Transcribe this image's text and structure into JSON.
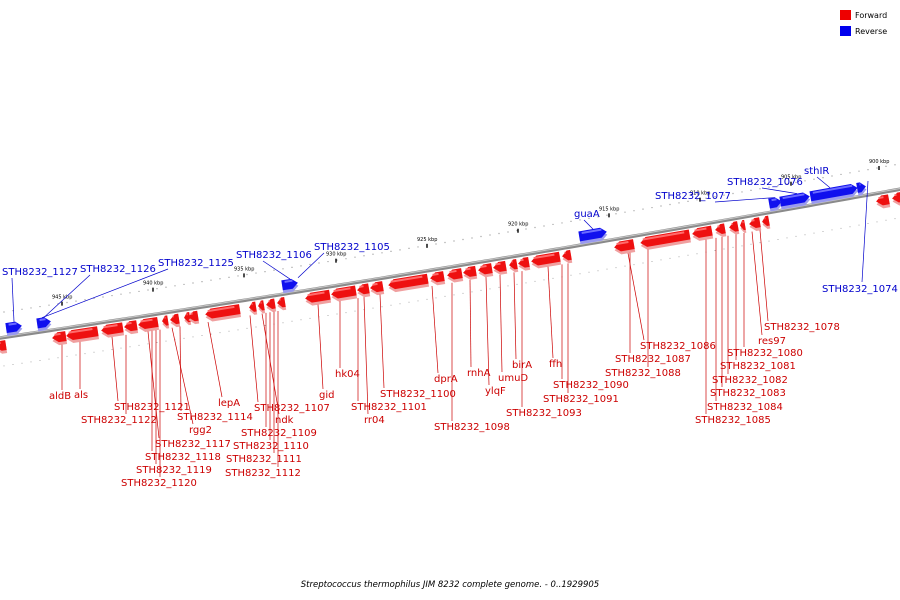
{
  "legend": [
    {
      "label": "Forward",
      "color": "#ee0000"
    },
    {
      "label": "Reverse",
      "color": "#0000ee"
    }
  ],
  "caption": "Streptococcus thermophilus JIM 8232 complete genome. - 0..1929905",
  "ticks": [
    "945 kbp",
    "940 kbp",
    "935 kbp",
    "930 kbp",
    "925 kbp",
    "920 kbp",
    "915 kbp",
    "910 kbp",
    "905 kbp",
    "900 kbp"
  ],
  "reverse_genes": [
    "STH8232_1127",
    "STH8232_1126",
    "STH8232_1125",
    "STH8232_1106",
    "STH8232_1105",
    "guaA",
    "STH8232_1077",
    "STH8232_1076",
    "sthIR",
    "STH8232_1074"
  ],
  "forward_genes": [
    "aldB",
    "als",
    "STH8232_1121",
    "STH8232_1122",
    "STH8232_1117",
    "STH8232_1118",
    "STH8232_1119",
    "STH8232_1120",
    "rgg2",
    "STH8232_1114",
    "lepA",
    "STH8232_1107",
    "ndk",
    "STH8232_1109",
    "STH8232_1110",
    "STH8232_1111",
    "STH8232_1112",
    "gid",
    "hk04",
    "STH8232_1101",
    "rr04",
    "STH8232_1100",
    "dprA",
    "STH8232_1098",
    "rnhA",
    "ylqF",
    "umuD",
    "birA",
    "STH8232_1093",
    "ffh",
    "STH8232_1090",
    "STH8232_1091",
    "STH8232_1086",
    "STH8232_1087",
    "STH8232_1088",
    "STH8232_1078",
    "res97",
    "STH8232_1080",
    "STH8232_1081",
    "STH8232_1082",
    "STH8232_1083",
    "STH8232_1084",
    "STH8232_1085"
  ]
}
